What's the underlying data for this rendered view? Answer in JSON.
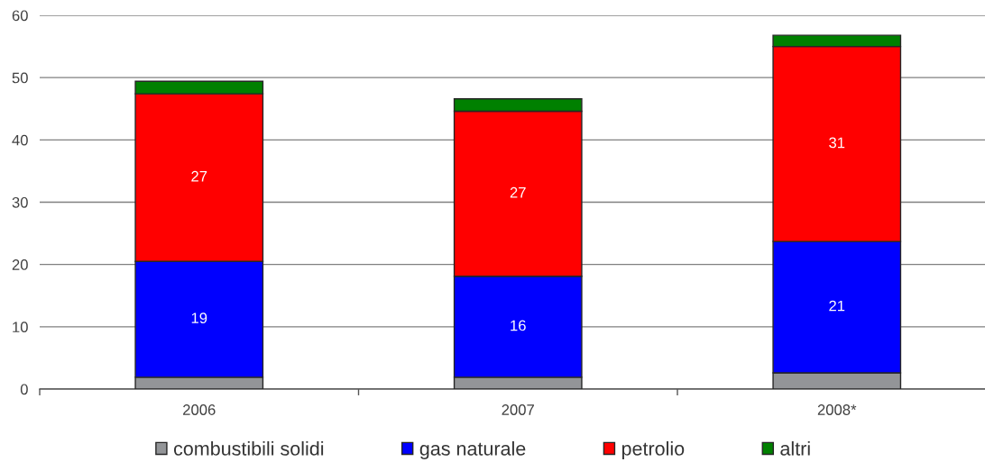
{
  "chart_data": {
    "type": "bar",
    "stacked": true,
    "categories": [
      "2006",
      "2007",
      "2008*"
    ],
    "series": [
      {
        "name": "combustibili solidi",
        "color": "#939598",
        "values": [
          1.9,
          1.9,
          2.6
        ]
      },
      {
        "name": "gas naturale",
        "color": "#0000ff",
        "values": [
          18.6,
          16.2,
          21.1
        ],
        "value_labels": [
          "19",
          "16",
          "21"
        ]
      },
      {
        "name": "petrolio",
        "color": "#ff0000",
        "values": [
          26.9,
          26.5,
          31.3
        ],
        "value_labels": [
          "27",
          "27",
          "31"
        ]
      },
      {
        "name": "altri",
        "color": "#008000",
        "values": [
          2.0,
          2.0,
          1.8
        ]
      }
    ],
    "ylim": [
      0,
      60
    ],
    "yticks": [
      0,
      10,
      20,
      30,
      40,
      50,
      60
    ],
    "grid": "y",
    "legend": "bottom"
  }
}
